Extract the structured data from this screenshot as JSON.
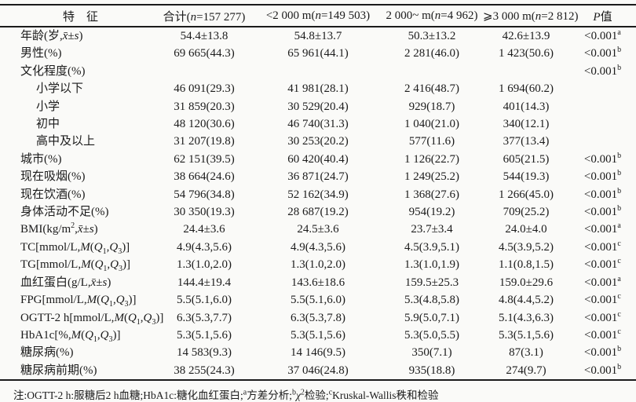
{
  "table": {
    "columns": [
      {
        "name": "characteristic",
        "html": "特　征"
      },
      {
        "name": "total",
        "html": "合计(<i>n</i>=157 277)"
      },
      {
        "name": "below-2000m",
        "html": "<2 000 m(<i>n</i>=149 503)"
      },
      {
        "name": "band-2000m",
        "html": "2 000~ m(<i>n</i>=4 962)"
      },
      {
        "name": "above-3000m",
        "html": "⩾3 000 m(<i>n</i>=2 812)"
      },
      {
        "name": "p-value",
        "html": "<i>P</i>值"
      }
    ],
    "rows": [
      {
        "label": "年龄(岁,<i>x̄</i>±<i>s</i>)",
        "indent": false,
        "cells": [
          "54.4±13.8",
          "54.8±13.7",
          "50.3±13.2",
          "42.6±13.9"
        ],
        "p": "<0.001",
        "p_sup": "a"
      },
      {
        "label": "男性(%)",
        "indent": false,
        "cells": [
          "69 665(44.3)",
          "65 961(44.1)",
          "2 281(46.0)",
          "1 423(50.6)"
        ],
        "p": "<0.001",
        "p_sup": "b"
      },
      {
        "label": "文化程度(%)",
        "indent": false,
        "cells": [
          "",
          "",
          "",
          ""
        ],
        "p": "<0.001",
        "p_sup": "b"
      },
      {
        "label": "小学以下",
        "indent": true,
        "cells": [
          "46 091(29.3)",
          "41 981(28.1)",
          "2 416(48.7)",
          "1 694(60.2)"
        ],
        "p": "",
        "p_sup": ""
      },
      {
        "label": "小学",
        "indent": true,
        "cells": [
          "31 859(20.3)",
          "30 529(20.4)",
          "929(18.7)",
          "401(14.3)"
        ],
        "p": "",
        "p_sup": ""
      },
      {
        "label": "初中",
        "indent": true,
        "cells": [
          "48 120(30.6)",
          "46 740(31.3)",
          "1 040(21.0)",
          "340(12.1)"
        ],
        "p": "",
        "p_sup": ""
      },
      {
        "label": "高中及以上",
        "indent": true,
        "cells": [
          "31 207(19.8)",
          "30 253(20.2)",
          "577(11.6)",
          "377(13.4)"
        ],
        "p": "",
        "p_sup": ""
      },
      {
        "label": "城市(%)",
        "indent": false,
        "cells": [
          "62 151(39.5)",
          "60 420(40.4)",
          "1 126(22.7)",
          "605(21.5)"
        ],
        "p": "<0.001",
        "p_sup": "b"
      },
      {
        "label": "现在吸烟(%)",
        "indent": false,
        "cells": [
          "38 664(24.6)",
          "36 871(24.7)",
          "1 249(25.2)",
          "544(19.3)"
        ],
        "p": "<0.001",
        "p_sup": "b"
      },
      {
        "label": "现在饮酒(%)",
        "indent": false,
        "cells": [
          "54 796(34.8)",
          "52 162(34.9)",
          "1 368(27.6)",
          "1 266(45.0)"
        ],
        "p": "<0.001",
        "p_sup": "b"
      },
      {
        "label": "身体活动不足(%)",
        "indent": false,
        "cells": [
          "30 350(19.3)",
          "28 687(19.2)",
          "954(19.2)",
          "709(25.2)"
        ],
        "p": "<0.001",
        "p_sup": "b"
      },
      {
        "label": "BMI(kg/m<sup>2</sup>,<i>x̄</i>±<i>s</i>)",
        "indent": false,
        "cells": [
          "24.4±3.6",
          "24.5±3.6",
          "23.7±3.4",
          "24.0±4.0"
        ],
        "p": "<0.001",
        "p_sup": "a"
      },
      {
        "label": "TC[mmol/L,<i>M</i>(<i>Q</i><sub>1</sub>,<i>Q</i><sub>3</sub>)]",
        "indent": false,
        "cells": [
          "4.9(4.3,5.6)",
          "4.9(4.3,5.6)",
          "4.5(3.9,5.1)",
          "4.5(3.9,5.2)"
        ],
        "p": "<0.001",
        "p_sup": "c"
      },
      {
        "label": "TG[mmol/L,<i>M</i>(<i>Q</i><sub>1</sub>,<i>Q</i><sub>3</sub>)]",
        "indent": false,
        "cells": [
          "1.3(1.0,2.0)",
          "1.3(1.0,2.0)",
          "1.3(1.0,1.9)",
          "1.1(0.8,1.5)"
        ],
        "p": "<0.001",
        "p_sup": "c"
      },
      {
        "label": "血红蛋白(g/L,<i>x̄</i>±<i>s</i>)",
        "indent": false,
        "cells": [
          "144.4±19.4",
          "143.6±18.6",
          "159.5±25.3",
          "159.0±29.6"
        ],
        "p": "<0.001",
        "p_sup": "a"
      },
      {
        "label": "FPG[mmol/L,<i>M</i>(<i>Q</i><sub>1</sub>,<i>Q</i><sub>3</sub>)]",
        "indent": false,
        "cells": [
          "5.5(5.1,6.0)",
          "5.5(5.1,6.0)",
          "5.3(4.8,5.8)",
          "4.8(4.4,5.2)"
        ],
        "p": "<0.001",
        "p_sup": "c"
      },
      {
        "label": "OGTT-2 h[mmol/L,<i>M</i>(<i>Q</i><sub>1</sub>,<i>Q</i><sub>3</sub>)]",
        "indent": false,
        "cells": [
          "6.3(5.3,7.7)",
          "6.3(5.3,7.8)",
          "5.9(5.0,7.1)",
          "5.1(4.3,6.3)"
        ],
        "p": "<0.001",
        "p_sup": "c"
      },
      {
        "label": "HbA1c[%,<i>M</i>(<i>Q</i><sub>1</sub>,<i>Q</i><sub>3</sub>)]",
        "indent": false,
        "cells": [
          "5.3(5.1,5.6)",
          "5.3(5.1,5.6)",
          "5.3(5.0,5.5)",
          "5.3(5.1,5.6)"
        ],
        "p": "<0.001",
        "p_sup": "c"
      },
      {
        "label": "糖尿病(%)",
        "indent": false,
        "cells": [
          "14 583(9.3)",
          "14 146(9.5)",
          "350(7.1)",
          "87(3.1)"
        ],
        "p": "<0.001",
        "p_sup": "b"
      },
      {
        "label": "糖尿病前期(%)",
        "indent": false,
        "cells": [
          "38 255(24.3)",
          "37 046(24.8)",
          "935(18.8)",
          "274(9.7)"
        ],
        "p": "<0.001",
        "p_sup": "b"
      }
    ]
  },
  "footnote": {
    "html": "注:OGTT-2 h:服糖后2 h血糖;HbA1c:糖化血红蛋白;<sup>a</sup>方差分析;<sup>b</sup><i>χ</i><sup>2</sup>检验;<sup>c</sup>Kruskal-Wallis秩和检验"
  }
}
